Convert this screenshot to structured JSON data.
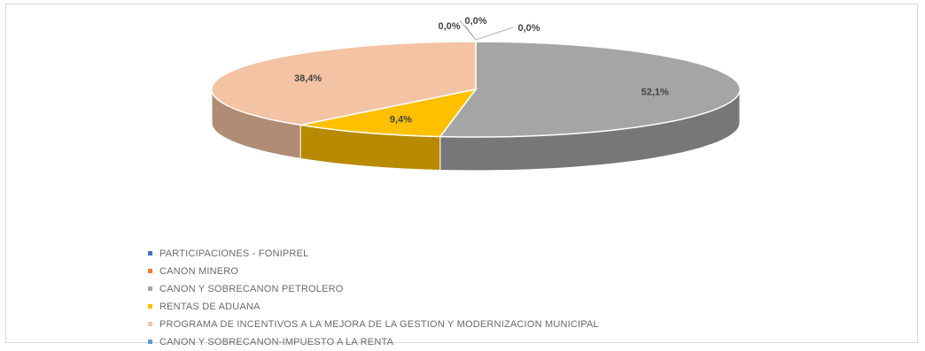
{
  "chart_data": {
    "type": "pie",
    "style": "3d-exploded-oval",
    "slices": [
      {
        "label": "PARTICIPACIONES - FONIPREL",
        "value": 0.0,
        "label_text": "0,0%",
        "color": "#4472c4"
      },
      {
        "label": "CANON MINERO",
        "value": 0.0,
        "label_text": "0,0%",
        "color": "#ed7d31"
      },
      {
        "label": "CANON Y SOBRECANON PETROLERO",
        "value": 52.1,
        "label_text": "52,1%",
        "color": "#a5a5a5"
      },
      {
        "label": "RENTAS DE ADUANA",
        "value": 9.4,
        "label_text": "9,4%",
        "color": "#ffc000"
      },
      {
        "label": "PROGRAMA DE INCENTIVOS A LA MEJORA DE LA GESTION Y MODERNIZACION MUNICIPAL",
        "value": 38.4,
        "label_text": "38,4%",
        "color": "#f4c3a3"
      },
      {
        "label": "CANON Y SOBRECANON-IMPUESTO A LA RENTA",
        "value": 0.0,
        "label_text": "0,0%",
        "color": "#5b9bd5"
      }
    ],
    "legend_position": "bottom-left"
  }
}
